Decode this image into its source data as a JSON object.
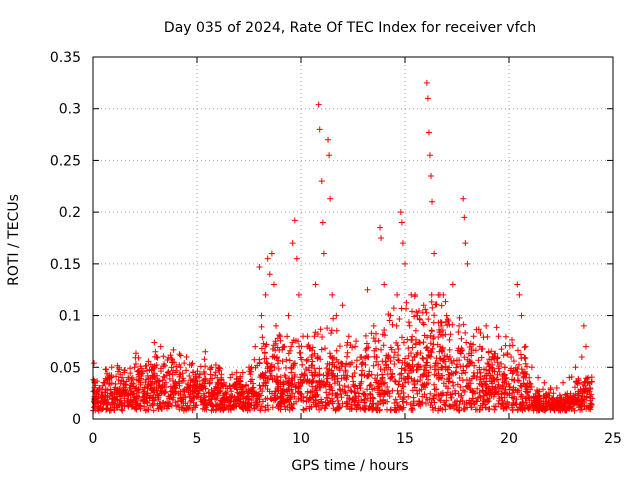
{
  "chart_data": {
    "type": "scatter",
    "title": "Day 035 of 2024, Rate Of TEC Index for receiver vfch",
    "xlabel": "GPS time / hours",
    "ylabel": "ROTI / TECUs",
    "xlim": [
      0,
      25
    ],
    "ylim": [
      0,
      0.35
    ],
    "xticks": [
      0,
      5,
      10,
      15,
      20,
      25
    ],
    "xtick_labels": [
      "0",
      "5",
      "10",
      "15",
      "20",
      "25"
    ],
    "yticks": [
      0,
      0.05,
      0.1,
      0.15,
      0.2,
      0.25,
      0.3,
      0.35
    ],
    "ytick_labels": [
      "0",
      "0.05",
      "0.1",
      "0.15",
      "0.2",
      "0.25",
      "0.3",
      "0.35"
    ],
    "grid": true,
    "marker": "+",
    "series_color": "#ff0000",
    "series": [
      {
        "name": "ROTI",
        "points": [
          [
            0.05,
            0.054
          ],
          [
            0.1,
            0.035
          ],
          [
            0.15,
            0.02
          ],
          [
            0.3,
            0.03
          ],
          [
            0.5,
            0.015
          ],
          [
            0.8,
            0.04
          ],
          [
            0.9,
            0.05
          ],
          [
            1.2,
            0.028
          ],
          [
            1.5,
            0.045
          ],
          [
            1.8,
            0.03
          ],
          [
            2.0,
            0.05
          ],
          [
            2.3,
            0.035
          ],
          [
            2.6,
            0.025
          ],
          [
            2.95,
            0.074
          ],
          [
            3.0,
            0.065
          ],
          [
            3.05,
            0.06
          ],
          [
            3.3,
            0.03
          ],
          [
            3.6,
            0.045
          ],
          [
            3.9,
            0.055
          ],
          [
            4.2,
            0.05
          ],
          [
            4.5,
            0.06
          ],
          [
            4.8,
            0.045
          ],
          [
            5.1,
            0.04
          ],
          [
            5.4,
            0.065
          ],
          [
            5.7,
            0.05
          ],
          [
            6.0,
            0.03
          ],
          [
            6.3,
            0.035
          ],
          [
            6.6,
            0.04
          ],
          [
            6.9,
            0.03
          ],
          [
            7.2,
            0.045
          ],
          [
            7.5,
            0.05
          ],
          [
            7.8,
            0.07
          ],
          [
            8.0,
            0.147
          ],
          [
            8.1,
            0.1
          ],
          [
            8.3,
            0.12
          ],
          [
            8.4,
            0.155
          ],
          [
            8.5,
            0.14
          ],
          [
            8.6,
            0.16
          ],
          [
            8.7,
            0.13
          ],
          [
            8.8,
            0.09
          ],
          [
            9.0,
            0.08
          ],
          [
            9.2,
            0.07
          ],
          [
            9.4,
            0.1
          ],
          [
            9.6,
            0.17
          ],
          [
            9.7,
            0.192
          ],
          [
            9.8,
            0.155
          ],
          [
            9.9,
            0.12
          ],
          [
            10.1,
            0.08
          ],
          [
            10.3,
            0.07
          ],
          [
            10.5,
            0.06
          ],
          [
            10.7,
            0.13
          ],
          [
            10.85,
            0.304
          ],
          [
            10.9,
            0.28
          ],
          [
            11.0,
            0.23
          ],
          [
            11.05,
            0.19
          ],
          [
            11.1,
            0.16
          ],
          [
            11.3,
            0.27
          ],
          [
            11.35,
            0.255
          ],
          [
            11.4,
            0.213
          ],
          [
            11.5,
            0.12
          ],
          [
            11.7,
            0.1
          ],
          [
            12.0,
            0.11
          ],
          [
            12.3,
            0.08
          ],
          [
            12.6,
            0.07
          ],
          [
            12.9,
            0.06
          ],
          [
            13.2,
            0.125
          ],
          [
            13.5,
            0.09
          ],
          [
            13.8,
            0.185
          ],
          [
            13.85,
            0.175
          ],
          [
            14.0,
            0.13
          ],
          [
            14.3,
            0.1
          ],
          [
            14.6,
            0.09
          ],
          [
            14.8,
            0.2
          ],
          [
            14.85,
            0.19
          ],
          [
            14.9,
            0.17
          ],
          [
            15.0,
            0.15
          ],
          [
            15.3,
            0.12
          ],
          [
            15.6,
            0.1
          ],
          [
            15.9,
            0.11
          ],
          [
            16.05,
            0.325
          ],
          [
            16.1,
            0.31
          ],
          [
            16.15,
            0.277
          ],
          [
            16.2,
            0.255
          ],
          [
            16.25,
            0.235
          ],
          [
            16.3,
            0.21
          ],
          [
            16.4,
            0.16
          ],
          [
            16.6,
            0.12
          ],
          [
            17.0,
            0.1
          ],
          [
            17.3,
            0.13
          ],
          [
            17.6,
            0.09
          ],
          [
            17.8,
            0.213
          ],
          [
            17.85,
            0.195
          ],
          [
            17.9,
            0.17
          ],
          [
            18.0,
            0.15
          ],
          [
            18.3,
            0.08
          ],
          [
            18.6,
            0.07
          ],
          [
            18.9,
            0.09
          ],
          [
            19.2,
            0.06
          ],
          [
            19.5,
            0.08
          ],
          [
            19.8,
            0.05
          ],
          [
            20.1,
            0.06
          ],
          [
            20.4,
            0.13
          ],
          [
            20.5,
            0.12
          ],
          [
            20.6,
            0.1
          ],
          [
            20.8,
            0.07
          ],
          [
            21.1,
            0.05
          ],
          [
            21.4,
            0.04
          ],
          [
            21.7,
            0.035
          ],
          [
            22.0,
            0.03
          ],
          [
            22.3,
            0.03
          ],
          [
            22.6,
            0.035
          ],
          [
            22.9,
            0.04
          ],
          [
            23.2,
            0.05
          ],
          [
            23.5,
            0.06
          ],
          [
            23.6,
            0.09
          ],
          [
            23.7,
            0.07
          ],
          [
            23.8,
            0.04
          ],
          [
            23.9,
            0.03
          ],
          [
            24.0,
            0.02
          ]
        ]
      }
    ]
  }
}
